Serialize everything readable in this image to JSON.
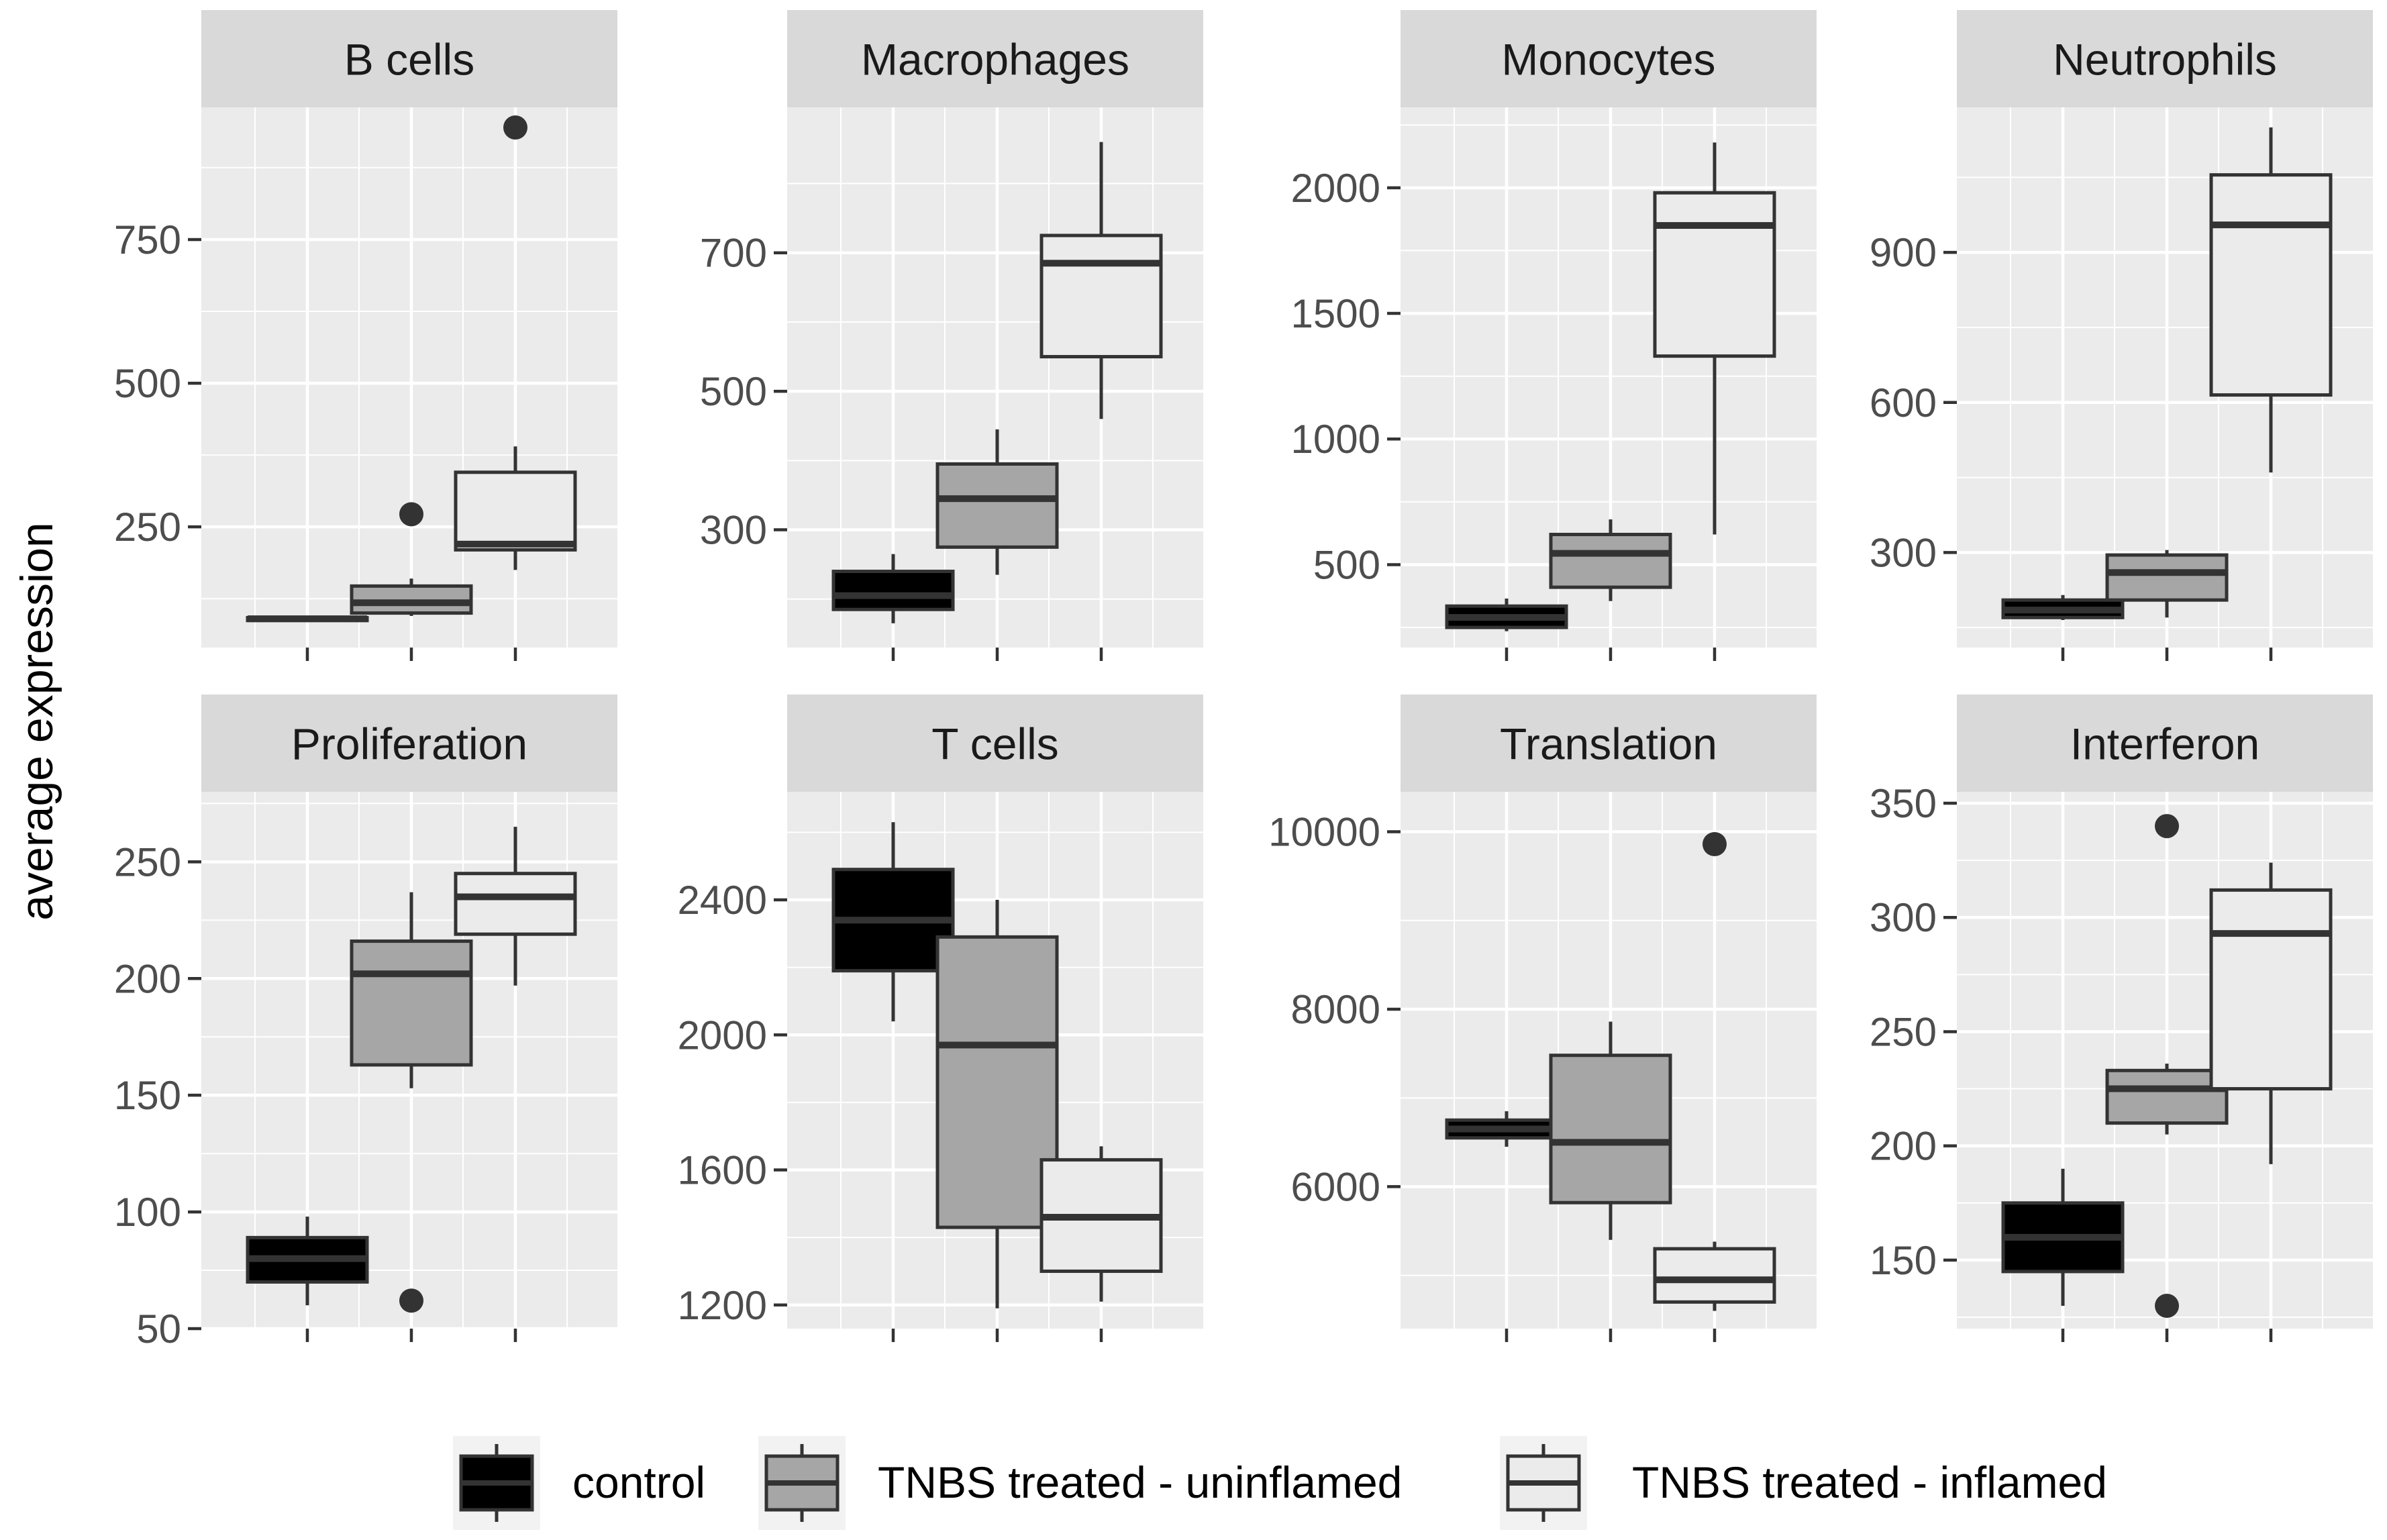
{
  "ylabel": "average expression",
  "colors": {
    "panel_bg": "#ebebeb",
    "strip_bg": "#d9d9d9",
    "grid": "#ffffff",
    "axis_text": "#4d4d4d",
    "box_line": "#333333"
  },
  "legend": [
    {
      "label": "control",
      "fill": "#000000"
    },
    {
      "label": "TNBS treated - uninflamed",
      "fill": "#a6a6a6"
    },
    {
      "label": "TNBS treated - inflamed",
      "fill": "#ebebeb"
    }
  ],
  "chart_data": [
    {
      "type": "box",
      "title": "B cells",
      "ylim": [
        40,
        980
      ],
      "yticks": [
        250,
        500,
        750
      ],
      "ytick_labels": [
        "250",
        "500",
        "750"
      ],
      "groups": [
        "control",
        "TNBS treated - uninflamed",
        "TNBS treated - inflamed"
      ],
      "boxes": [
        {
          "whisker_low": 85,
          "q1": 87,
          "median": 90,
          "q3": 92,
          "whisker_high": 95,
          "outliers": []
        },
        {
          "whisker_low": 95,
          "q1": 100,
          "median": 118,
          "q3": 147,
          "whisker_high": 160,
          "outliers": [
            272
          ]
        },
        {
          "whisker_low": 175,
          "q1": 210,
          "median": 220,
          "q3": 345,
          "whisker_high": 390,
          "outliers": [
            945
          ]
        }
      ]
    },
    {
      "type": "box",
      "title": "Macrophages",
      "ylim": [
        130,
        910
      ],
      "yticks": [
        300,
        500,
        700
      ],
      "ytick_labels": [
        "300",
        "500",
        "700"
      ],
      "groups": [
        "control",
        "TNBS treated - uninflamed",
        "TNBS treated - inflamed"
      ],
      "boxes": [
        {
          "whisker_low": 165,
          "q1": 185,
          "median": 205,
          "q3": 240,
          "whisker_high": 265,
          "outliers": []
        },
        {
          "whisker_low": 235,
          "q1": 275,
          "median": 345,
          "q3": 395,
          "whisker_high": 445,
          "outliers": []
        },
        {
          "whisker_low": 460,
          "q1": 550,
          "median": 685,
          "q3": 725,
          "whisker_high": 860,
          "outliers": []
        }
      ]
    },
    {
      "type": "box",
      "title": "Monocytes",
      "ylim": [
        170,
        2320
      ],
      "yticks": [
        500,
        1000,
        1500,
        2000
      ],
      "ytick_labels": [
        "500",
        "1000",
        "1500",
        "2000"
      ],
      "groups": [
        "control",
        "TNBS treated - uninflamed",
        "TNBS treated - inflamed"
      ],
      "boxes": [
        {
          "whisker_low": 235,
          "q1": 250,
          "median": 290,
          "q3": 335,
          "whisker_high": 365,
          "outliers": []
        },
        {
          "whisker_low": 355,
          "q1": 410,
          "median": 545,
          "q3": 620,
          "whisker_high": 680,
          "outliers": []
        },
        {
          "whisker_low": 620,
          "q1": 1330,
          "median": 1850,
          "q3": 1980,
          "whisker_high": 2180,
          "outliers": []
        }
      ]
    },
    {
      "type": "box",
      "title": "Neutrophils",
      "ylim": [
        110,
        1190
      ],
      "yticks": [
        300,
        600,
        900
      ],
      "ytick_labels": [
        "300",
        "600",
        "900"
      ],
      "groups": [
        "control",
        "TNBS treated - uninflamed",
        "TNBS treated - inflamed"
      ],
      "boxes": [
        {
          "whisker_low": 165,
          "q1": 170,
          "median": 185,
          "q3": 205,
          "whisker_high": 215,
          "outliers": []
        },
        {
          "whisker_low": 170,
          "q1": 205,
          "median": 260,
          "q3": 295,
          "whisker_high": 305,
          "outliers": []
        },
        {
          "whisker_low": 460,
          "q1": 615,
          "median": 955,
          "q3": 1055,
          "whisker_high": 1150,
          "outliers": []
        }
      ]
    },
    {
      "type": "box",
      "title": "Proliferation",
      "ylim": [
        50,
        280
      ],
      "yticks": [
        50,
        100,
        150,
        200,
        250
      ],
      "ytick_labels": [
        "50",
        "100",
        "150",
        "200",
        "250"
      ],
      "groups": [
        "control",
        "TNBS treated - uninflamed",
        "TNBS treated - inflamed"
      ],
      "boxes": [
        {
          "whisker_low": 60,
          "q1": 70,
          "median": 80,
          "q3": 89,
          "whisker_high": 98,
          "outliers": []
        },
        {
          "whisker_low": 153,
          "q1": 163,
          "median": 202,
          "q3": 216,
          "whisker_high": 237,
          "outliers": [
            62
          ]
        },
        {
          "whisker_low": 197,
          "q1": 219,
          "median": 235,
          "q3": 245,
          "whisker_high": 265,
          "outliers": []
        }
      ]
    },
    {
      "type": "box",
      "title": "T cells",
      "ylim": [
        1130,
        2720
      ],
      "yticks": [
        1200,
        1600,
        2000,
        2400
      ],
      "ytick_labels": [
        "1200",
        "1600",
        "2000",
        "2400"
      ],
      "groups": [
        "control",
        "TNBS treated - uninflamed",
        "TNBS treated - inflamed"
      ],
      "boxes": [
        {
          "whisker_low": 2040,
          "q1": 2190,
          "median": 2340,
          "q3": 2490,
          "whisker_high": 2630,
          "outliers": []
        },
        {
          "whisker_low": 1190,
          "q1": 1430,
          "median": 1970,
          "q3": 2290,
          "whisker_high": 2400,
          "outliers": []
        },
        {
          "whisker_low": 1210,
          "q1": 1300,
          "median": 1460,
          "q3": 1630,
          "whisker_high": 1670,
          "outliers": []
        }
      ]
    },
    {
      "type": "box",
      "title": "Translation",
      "ylim": [
        4400,
        10450
      ],
      "yticks": [
        6000,
        8000,
        10000
      ],
      "ytick_labels": [
        "6000",
        "8000",
        "10000"
      ],
      "groups": [
        "control",
        "TNBS treated - uninflamed",
        "TNBS treated - inflamed"
      ],
      "boxes": [
        {
          "whisker_low": 6450,
          "q1": 6550,
          "median": 6650,
          "q3": 6750,
          "whisker_high": 6850,
          "outliers": []
        },
        {
          "whisker_low": 5400,
          "q1": 5820,
          "median": 6500,
          "q3": 7480,
          "whisker_high": 7860,
          "outliers": []
        },
        {
          "whisker_low": 4600,
          "q1": 4700,
          "median": 4950,
          "q3": 5300,
          "whisker_high": 5380,
          "outliers": [
            9860
          ]
        }
      ]
    },
    {
      "type": "box",
      "title": "Interferon",
      "ylim": [
        120,
        355
      ],
      "yticks": [
        150,
        200,
        250,
        300,
        350
      ],
      "ytick_labels": [
        "150",
        "200",
        "250",
        "300",
        "350"
      ],
      "groups": [
        "control",
        "TNBS treated - uninflamed",
        "TNBS treated - inflamed"
      ],
      "boxes": [
        {
          "whisker_low": 130,
          "q1": 145,
          "median": 160,
          "q3": 175,
          "whisker_high": 190,
          "outliers": []
        },
        {
          "whisker_low": 205,
          "q1": 210,
          "median": 225,
          "q3": 233,
          "whisker_high": 236,
          "outliers": [
            340,
            130
          ]
        },
        {
          "whisker_low": 192,
          "q1": 225,
          "median": 293,
          "q3": 312,
          "whisker_high": 324,
          "outliers": []
        }
      ]
    }
  ]
}
